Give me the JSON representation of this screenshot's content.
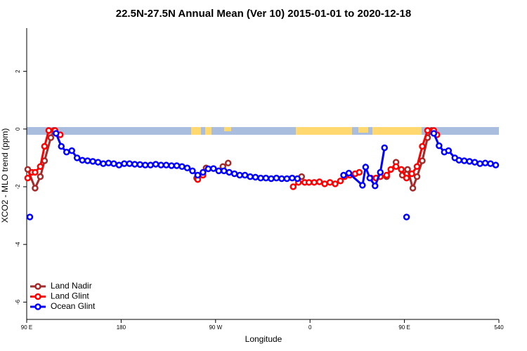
{
  "chart_data": {
    "type": "line",
    "title": "22.5N-27.5N Annual Mean (Ver 10)   2015-01-01 to 2020-12-18",
    "x_label": "Longitude",
    "y_label": "XCO2 - MLO trend (ppm)",
    "xlim": [
      90,
      540
    ],
    "xticks": [
      {
        "value": 90,
        "label": "90 E"
      },
      180,
      {
        "value": 270,
        "label": "90 W"
      },
      {
        "value": 360,
        "label": "0"
      },
      {
        "value": 450,
        "label": "90 E"
      },
      540
    ],
    "ylim": [
      -6.6,
      3.5
    ],
    "yticks": [
      -6,
      -4,
      -2,
      0,
      2
    ],
    "legend": "bottom-left",
    "series": [
      {
        "name": "Land Nadir",
        "color": "#a52a2a",
        "x": [
          91,
          98,
          103,
          107,
          113,
          116,
          null,
          252,
          261,
          null,
          277,
          282,
          null,
          352,
          null,
          433,
          442,
          448,
          453,
          458,
          462,
          467,
          472,
          476
        ],
        "values": [
          -1.4,
          -2.05,
          -1.65,
          -1.1,
          -0.3,
          -0.05,
          null,
          -1.7,
          -1.35,
          null,
          -1.3,
          -1.18,
          null,
          -1.65,
          null,
          -1.65,
          -1.15,
          -1.6,
          -1.4,
          -2.05,
          -1.65,
          -1.1,
          -0.3,
          -0.05
        ]
      },
      {
        "name": "Land Glint",
        "color": "#ff0000",
        "x": [
          91,
          95,
          98,
          103,
          107,
          111,
          117,
          122,
          null,
          253,
          258,
          null,
          344,
          349,
          355,
          359,
          364,
          369,
          374,
          379,
          384,
          389,
          393,
          398,
          403,
          407,
          null,
          418,
          423,
          427,
          433,
          437,
          442,
          447,
          452,
          457,
          462,
          467,
          472,
          478,
          481
        ],
        "values": [
          -1.7,
          -1.5,
          -1.5,
          -1.3,
          -0.6,
          -0.05,
          -0.05,
          -0.2,
          null,
          -1.75,
          -1.6,
          null,
          -2.0,
          -1.85,
          -1.85,
          -1.85,
          -1.85,
          -1.83,
          -1.9,
          -1.85,
          -1.9,
          -1.8,
          -1.65,
          -1.6,
          -1.55,
          -1.5,
          null,
          -1.7,
          -1.7,
          -1.65,
          -1.6,
          -1.4,
          -1.3,
          -1.4,
          -1.7,
          -1.55,
          -1.3,
          -0.6,
          -0.05,
          -0.05,
          -0.2
        ]
      },
      {
        "name": "Ocean Glint",
        "color": "#0000ff",
        "x": [
          93,
          null,
          118,
          123,
          128,
          133,
          138,
          143,
          148,
          153,
          158,
          163,
          168,
          173,
          178,
          183,
          188,
          193,
          198,
          203,
          208,
          213,
          218,
          223,
          228,
          233,
          238,
          243,
          248,
          253,
          258,
          263,
          268,
          273,
          278,
          283,
          288,
          293,
          298,
          303,
          308,
          313,
          318,
          323,
          328,
          333,
          338,
          343,
          348,
          null,
          392,
          397,
          410,
          413,
          417,
          422,
          427,
          431,
          null,
          452,
          null,
          478,
          483,
          488,
          492,
          498,
          502,
          507,
          512,
          517,
          522,
          527,
          532,
          537
        ],
        "values": [
          -3.05,
          null,
          -0.15,
          -0.6,
          -0.8,
          -0.75,
          -1.0,
          -1.08,
          -1.1,
          -1.12,
          -1.15,
          -1.2,
          -1.18,
          -1.2,
          -1.25,
          -1.2,
          -1.2,
          -1.22,
          -1.23,
          -1.25,
          -1.25,
          -1.22,
          -1.25,
          -1.25,
          -1.27,
          -1.27,
          -1.3,
          -1.35,
          -1.45,
          -1.6,
          -1.5,
          -1.38,
          -1.37,
          -1.45,
          -1.45,
          -1.5,
          -1.55,
          -1.6,
          -1.6,
          -1.65,
          -1.67,
          -1.7,
          -1.7,
          -1.72,
          -1.7,
          -1.72,
          -1.72,
          -1.7,
          -1.72,
          null,
          -1.6,
          -1.53,
          -1.95,
          -1.32,
          -1.7,
          -1.97,
          -1.5,
          -0.65,
          null,
          -3.05,
          null,
          -0.15,
          -0.58,
          -0.8,
          -0.75,
          -1.0,
          -1.08,
          -1.1,
          -1.12,
          -1.15,
          -1.2,
          -1.18,
          -1.2,
          -1.25
        ]
      }
    ]
  }
}
